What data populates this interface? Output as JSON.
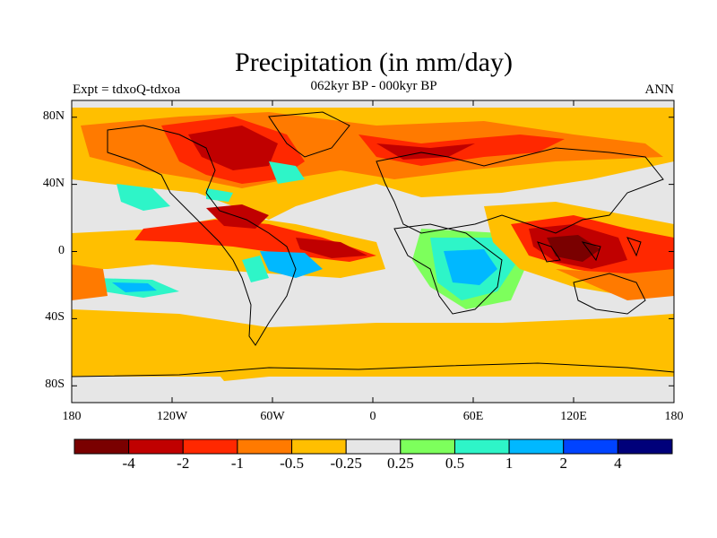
{
  "title": "Precipitation (in mm/day)",
  "left_label": "Expt = tdxoQ-tdxoa",
  "center_label": "062kyr BP - 000kyr BP",
  "right_label": "ANN",
  "lat_ticks": [
    {
      "value": 80,
      "label": "80N"
    },
    {
      "value": 40,
      "label": "40N"
    },
    {
      "value": 0,
      "label": "0"
    },
    {
      "value": -40,
      "label": "40S"
    },
    {
      "value": -80,
      "label": "80S"
    }
  ],
  "lon_ticks": [
    {
      "value": -180,
      "label": "180"
    },
    {
      "value": -120,
      "label": "120W"
    },
    {
      "value": -60,
      "label": "60W"
    },
    {
      "value": 0,
      "label": "0"
    },
    {
      "value": 60,
      "label": "60E"
    },
    {
      "value": 120,
      "label": "120E"
    },
    {
      "value": 180,
      "label": "180"
    }
  ],
  "colorbar": {
    "colors": [
      "#7a0000",
      "#c00000",
      "#ff2800",
      "#ff7a00",
      "#ffbf00",
      "#e6e6e6",
      "#7dff5c",
      "#2ef5c8",
      "#00b8ff",
      "#0043ff",
      "#00007a"
    ],
    "labels": [
      "-4",
      "-2",
      "-1",
      "-0.5",
      "-0.25",
      "0.25",
      "0.5",
      "1",
      "2",
      "4"
    ]
  },
  "colors": {
    "ocean_background": "#e6e6e6",
    "coast": "#000000"
  }
}
